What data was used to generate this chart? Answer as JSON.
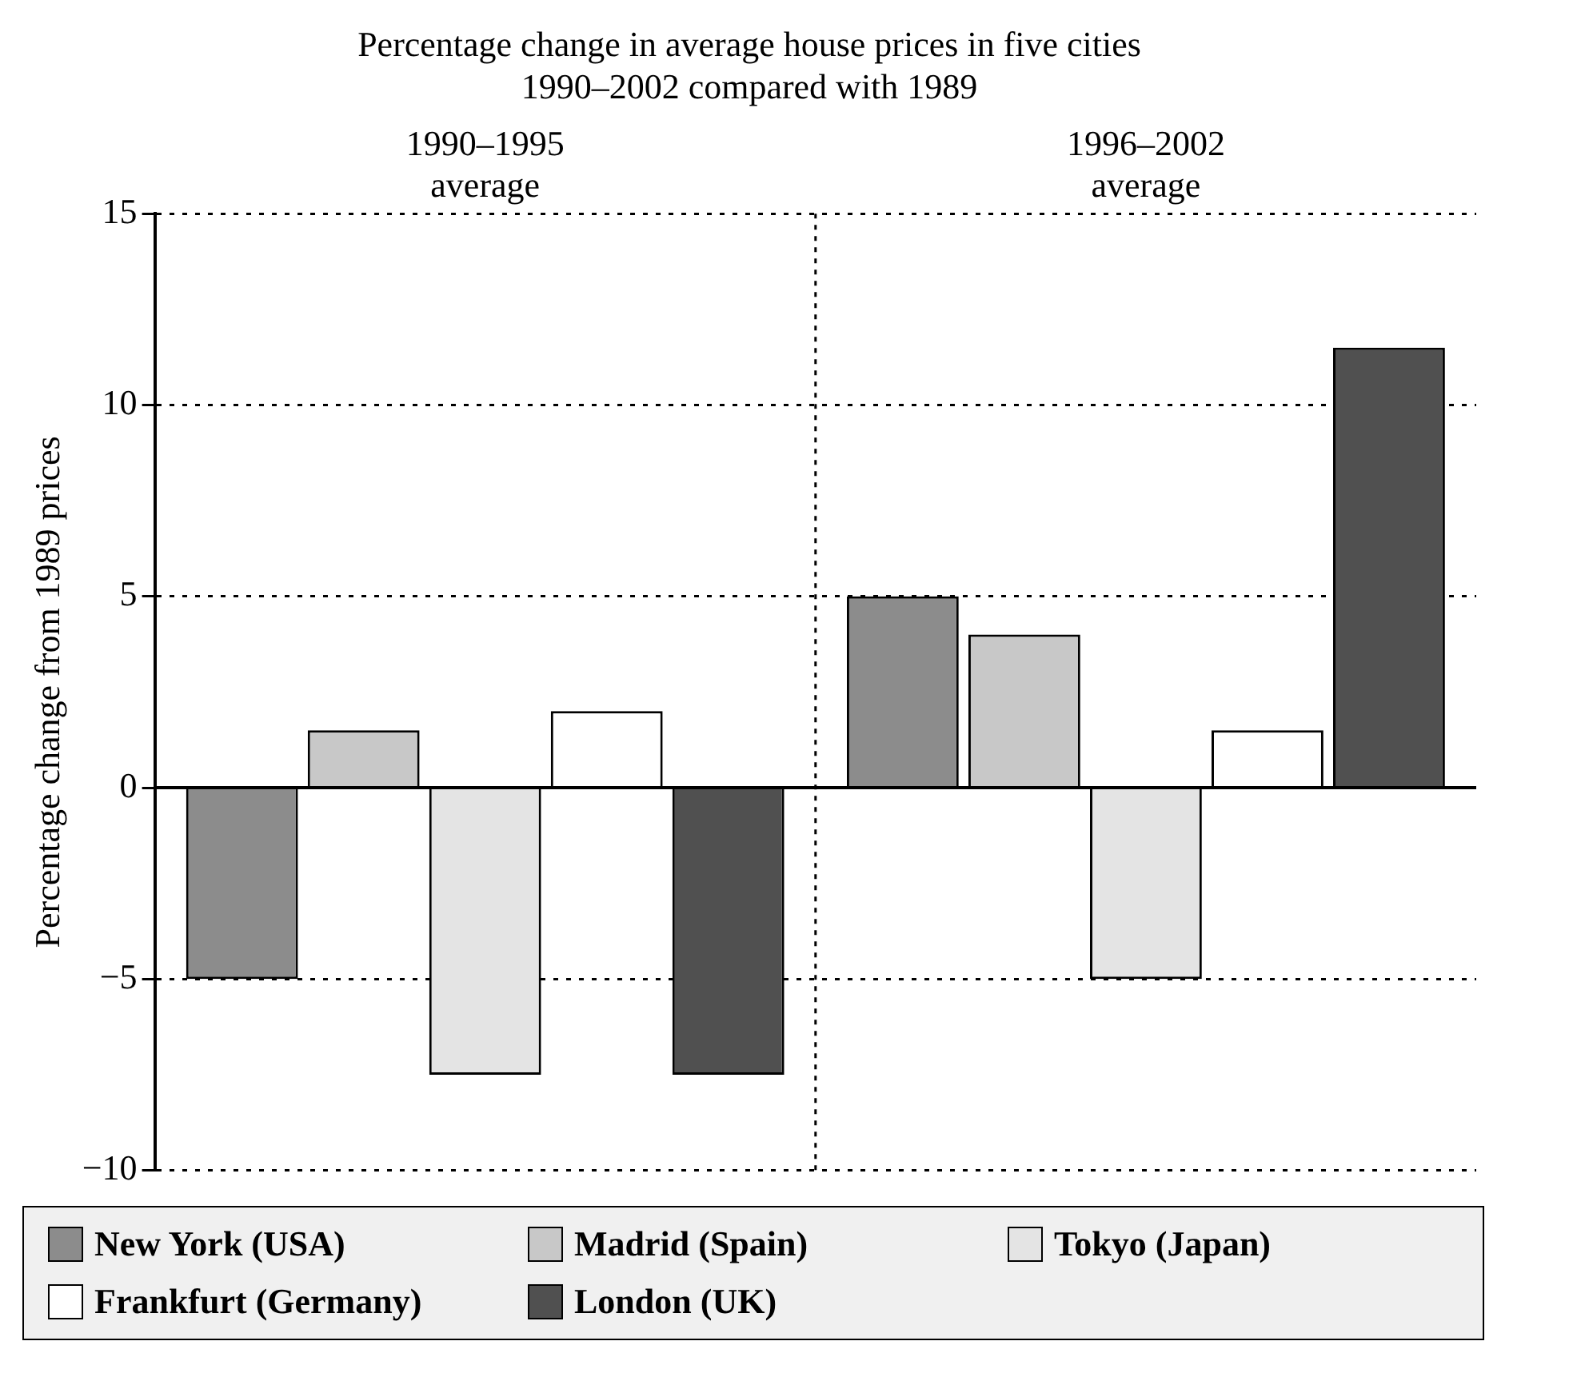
{
  "chart_data": {
    "type": "bar",
    "title": "Percentage change in average house prices in five cities",
    "subtitle": "1990–2002 compared with 1989",
    "ylabel": "Percentage change from 1989 prices",
    "categories": [
      "1990–1995 average",
      "1996–2002 average"
    ],
    "series": [
      {
        "name": "New York (USA)",
        "color": "#8c8c8c",
        "values": [
          -5,
          5
        ]
      },
      {
        "name": "Madrid (Spain)",
        "color": "#c8c8c8",
        "values": [
          1.5,
          4
        ]
      },
      {
        "name": "Tokyo (Japan)",
        "color": "#e4e4e4",
        "values": [
          -7.5,
          -5
        ]
      },
      {
        "name": "Frankfurt (Germany)",
        "color": "#ffffff",
        "values": [
          2,
          1.5
        ]
      },
      {
        "name": "London (UK)",
        "color": "#505050",
        "values": [
          -7.5,
          11.5
        ]
      }
    ],
    "ylim": [
      -10,
      15
    ],
    "yticks": [
      -10,
      -5,
      0,
      5,
      10,
      15
    ],
    "grid": "y",
    "legend": "bottom"
  }
}
